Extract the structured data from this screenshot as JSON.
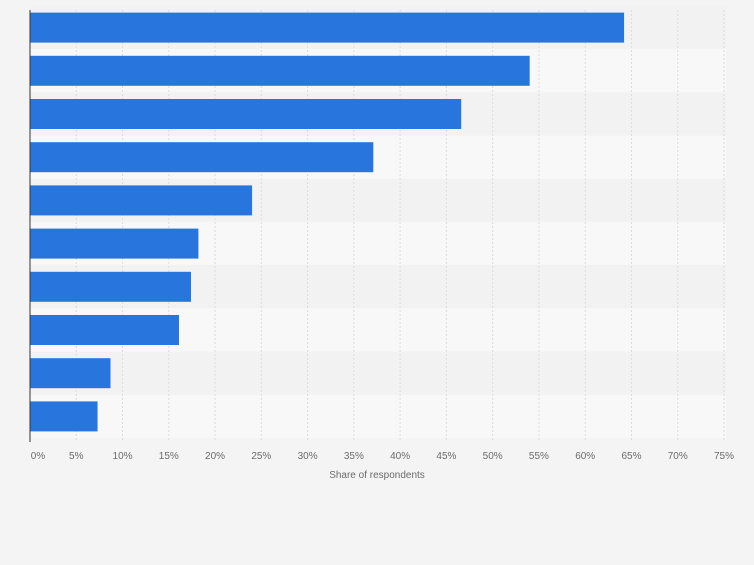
{
  "chart_data": {
    "type": "bar",
    "orientation": "horizontal",
    "title": "",
    "categories": [
      "",
      "",
      "",
      "",
      "",
      "",
      "",
      "",
      "",
      ""
    ],
    "values": [
      64.2,
      54.0,
      46.6,
      37.1,
      24.0,
      18.2,
      17.4,
      16.1,
      8.7,
      7.3
    ],
    "xlabel": "Share of respondents",
    "ylabel": "",
    "xlim": [
      0,
      75
    ],
    "x_ticks": [
      0,
      5,
      10,
      15,
      20,
      25,
      30,
      35,
      40,
      45,
      50,
      55,
      60,
      65,
      70,
      75
    ],
    "x_tick_labels": [
      "0%",
      "5%",
      "10%",
      "15%",
      "20%",
      "25%",
      "30%",
      "35%",
      "40%",
      "45%",
      "50%",
      "55%",
      "60%",
      "65%",
      "70%",
      "75%"
    ],
    "grid": true,
    "legend": "none",
    "colors": {
      "bar": "#2876dd",
      "band_dark": "#f2f2f2",
      "band_light": "#f8f8f8",
      "grid": "#dcdcdc",
      "axis": "#333333",
      "tick_text": "#6b6b6b",
      "background": "#f4f4f4"
    }
  }
}
